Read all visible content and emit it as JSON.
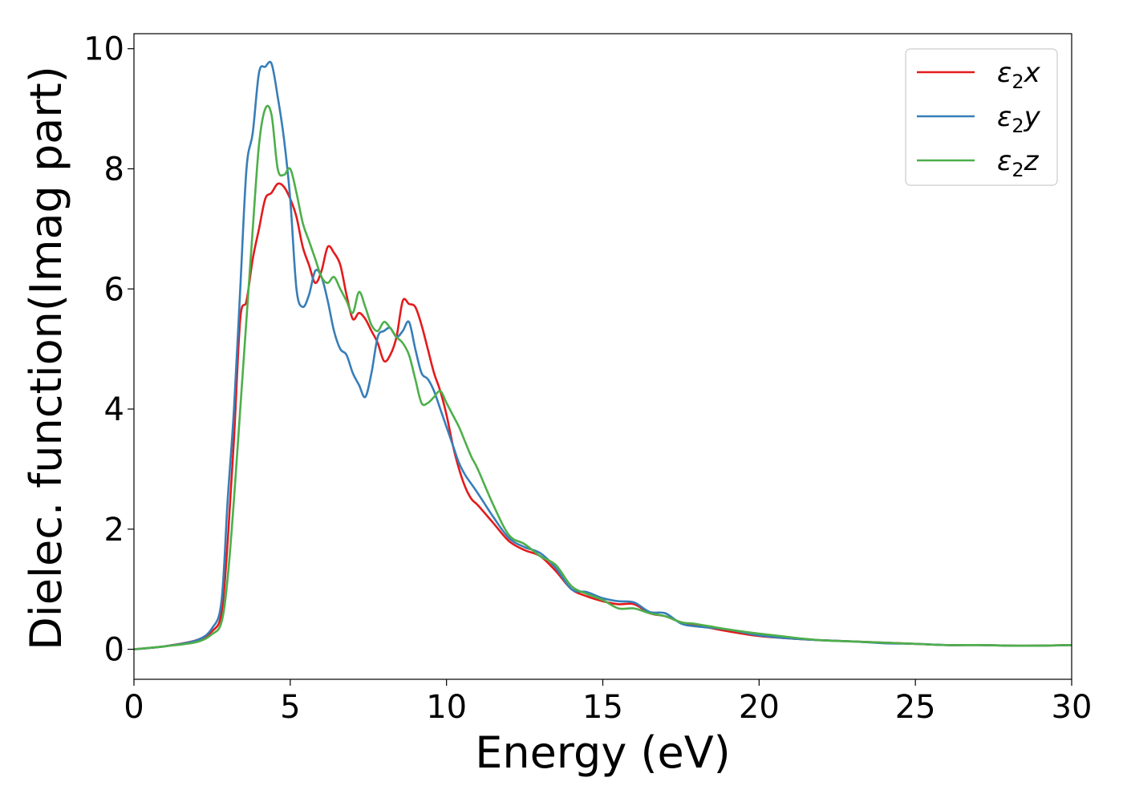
{
  "chart_data": {
    "type": "line",
    "title": "",
    "xlabel": "Energy (eV)",
    "ylabel": "Dielec. function(Imag part)",
    "xlim": [
      0,
      30
    ],
    "ylim": [
      -0.5,
      10.25
    ],
    "xticks": [
      0,
      5,
      10,
      15,
      20,
      25,
      30
    ],
    "yticks": [
      0,
      2,
      4,
      6,
      8,
      10
    ],
    "xtick_labels": [
      "0",
      "5",
      "10",
      "15",
      "20",
      "25",
      "30"
    ],
    "ytick_labels": [
      "0",
      "2",
      "4",
      "6",
      "8",
      "10"
    ],
    "grid": false,
    "legend_position": "top-right",
    "series": [
      {
        "name": "ε2x",
        "legend_base": "ε",
        "legend_sub": "2",
        "legend_suffix": "x",
        "color": "#e41a1c",
        "x": [
          0,
          1,
          2,
          2.5,
          2.8,
          3.0,
          3.2,
          3.4,
          3.6,
          3.8,
          4.0,
          4.2,
          4.4,
          4.6,
          4.8,
          5.0,
          5.2,
          5.4,
          5.6,
          5.8,
          6.0,
          6.2,
          6.4,
          6.6,
          6.8,
          7.0,
          7.2,
          7.4,
          7.6,
          7.8,
          8.0,
          8.2,
          8.4,
          8.6,
          8.8,
          9.0,
          9.2,
          9.4,
          9.6,
          9.8,
          10.0,
          10.2,
          10.4,
          10.6,
          10.8,
          11.0,
          11.5,
          12.0,
          12.5,
          13.0,
          13.5,
          14.0,
          14.5,
          15.0,
          15.5,
          16.0,
          16.5,
          17.0,
          17.5,
          18.0,
          19.0,
          20.0,
          21.0,
          22.0,
          23.0,
          24.0,
          25.0,
          26.0,
          27.0,
          28.0,
          29.0,
          30.0
        ],
        "y": [
          0.0,
          0.05,
          0.15,
          0.3,
          0.6,
          1.8,
          3.5,
          5.5,
          5.8,
          6.5,
          7.0,
          7.5,
          7.6,
          7.75,
          7.7,
          7.5,
          7.2,
          6.7,
          6.4,
          6.1,
          6.3,
          6.7,
          6.6,
          6.4,
          5.9,
          5.5,
          5.6,
          5.5,
          5.3,
          5.1,
          4.8,
          4.9,
          5.2,
          5.8,
          5.75,
          5.7,
          5.4,
          5.0,
          4.6,
          4.3,
          3.9,
          3.4,
          3.0,
          2.7,
          2.5,
          2.4,
          2.1,
          1.8,
          1.65,
          1.55,
          1.3,
          1.0,
          0.88,
          0.8,
          0.75,
          0.75,
          0.6,
          0.55,
          0.45,
          0.4,
          0.3,
          0.22,
          0.18,
          0.15,
          0.13,
          0.11,
          0.09,
          0.07,
          0.07,
          0.06,
          0.06,
          0.07
        ]
      },
      {
        "name": "ε2y",
        "legend_base": "ε",
        "legend_sub": "2",
        "legend_suffix": "y",
        "color": "#377eb8",
        "x": [
          0,
          1,
          2,
          2.5,
          2.8,
          3.0,
          3.2,
          3.4,
          3.6,
          3.8,
          4.0,
          4.2,
          4.4,
          4.6,
          4.8,
          5.0,
          5.2,
          5.4,
          5.6,
          5.8,
          6.0,
          6.2,
          6.4,
          6.6,
          6.8,
          7.0,
          7.2,
          7.4,
          7.6,
          7.8,
          8.0,
          8.2,
          8.4,
          8.6,
          8.8,
          9.0,
          9.2,
          9.4,
          9.6,
          9.8,
          10.0,
          10.2,
          10.4,
          10.6,
          10.8,
          11.0,
          11.5,
          12.0,
          12.5,
          13.0,
          13.5,
          14.0,
          14.5,
          15.0,
          15.5,
          16.0,
          16.5,
          17.0,
          17.5,
          18.0,
          19.0,
          20.0,
          21.0,
          22.0,
          23.0,
          24.0,
          25.0,
          26.0,
          27.0,
          28.0,
          29.0,
          30.0
        ],
        "y": [
          0.0,
          0.05,
          0.15,
          0.35,
          0.8,
          2.5,
          4.0,
          6.0,
          8.0,
          8.6,
          9.6,
          9.7,
          9.75,
          9.2,
          8.5,
          7.5,
          6.0,
          5.7,
          5.9,
          6.3,
          6.2,
          5.8,
          5.3,
          5.0,
          4.9,
          4.6,
          4.4,
          4.2,
          4.6,
          5.2,
          5.3,
          5.35,
          5.2,
          5.3,
          5.45,
          5.0,
          4.6,
          4.5,
          4.3,
          4.0,
          3.7,
          3.4,
          3.1,
          2.9,
          2.75,
          2.6,
          2.2,
          1.85,
          1.7,
          1.6,
          1.35,
          1.0,
          0.95,
          0.85,
          0.8,
          0.78,
          0.62,
          0.6,
          0.43,
          0.38,
          0.33,
          0.23,
          0.18,
          0.15,
          0.13,
          0.1,
          0.09,
          0.07,
          0.07,
          0.06,
          0.06,
          0.07
        ]
      },
      {
        "name": "ε2z",
        "legend_base": "ε",
        "legend_sub": "2",
        "legend_suffix": "z",
        "color": "#4daf4a",
        "x": [
          0,
          1,
          2,
          2.5,
          2.8,
          3.0,
          3.2,
          3.4,
          3.6,
          3.8,
          4.0,
          4.2,
          4.4,
          4.6,
          4.8,
          5.0,
          5.2,
          5.4,
          5.6,
          5.8,
          6.0,
          6.2,
          6.4,
          6.6,
          6.8,
          7.0,
          7.2,
          7.4,
          7.6,
          7.8,
          8.0,
          8.2,
          8.4,
          8.6,
          8.8,
          9.0,
          9.2,
          9.4,
          9.6,
          9.8,
          10.0,
          10.2,
          10.4,
          10.6,
          10.8,
          11.0,
          11.5,
          12.0,
          12.5,
          13.0,
          13.5,
          14.0,
          14.5,
          15.0,
          15.5,
          16.0,
          16.5,
          17.0,
          17.5,
          18.0,
          19.0,
          20.0,
          21.0,
          22.0,
          23.0,
          24.0,
          25.0,
          26.0,
          27.0,
          28.0,
          29.0,
          30.0
        ],
        "y": [
          0.0,
          0.05,
          0.12,
          0.25,
          0.45,
          1.2,
          2.5,
          4.0,
          5.5,
          7.0,
          8.4,
          9.0,
          8.9,
          8.0,
          7.9,
          8.0,
          7.6,
          7.1,
          6.8,
          6.5,
          6.2,
          6.1,
          6.2,
          6.0,
          5.8,
          5.6,
          5.95,
          5.7,
          5.4,
          5.3,
          5.45,
          5.35,
          5.2,
          5.1,
          4.9,
          4.5,
          4.1,
          4.1,
          4.2,
          4.3,
          4.1,
          3.9,
          3.7,
          3.45,
          3.2,
          3.0,
          2.4,
          1.9,
          1.75,
          1.55,
          1.4,
          1.05,
          0.92,
          0.82,
          0.68,
          0.68,
          0.6,
          0.55,
          0.45,
          0.42,
          0.33,
          0.26,
          0.2,
          0.15,
          0.13,
          0.11,
          0.09,
          0.07,
          0.07,
          0.06,
          0.06,
          0.07
        ]
      }
    ]
  }
}
